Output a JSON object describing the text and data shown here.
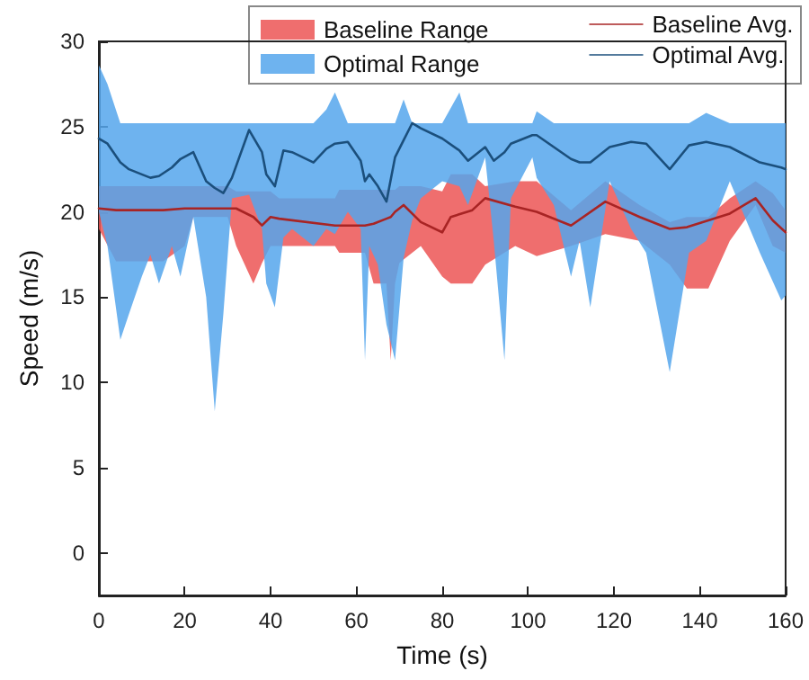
{
  "chart_data": {
    "type": "line",
    "xlabel": "Time (s)",
    "ylabel": "Speed (m/s)",
    "xlim": [
      0,
      160
    ],
    "xticks": [
      0,
      20,
      40,
      60,
      80,
      100,
      120,
      140,
      160
    ],
    "ylim": [
      -2.5,
      30
    ],
    "yticks": [
      0,
      5,
      10,
      15,
      20,
      25,
      30
    ],
    "grid": false,
    "legend": "top right",
    "marker": "none",
    "line_style": "solid",
    "annotations": [
      "Baseline Range",
      "Optimal Range"
    ],
    "series": [
      {
        "name": "Baseline Avg.",
        "color": "#a82424",
        "x": [
          0,
          4,
          15,
          20,
          22,
          30,
          32,
          36,
          38,
          40,
          42,
          55,
          56,
          62,
          64,
          67,
          68,
          69,
          70,
          71,
          75,
          80,
          82,
          87,
          90,
          97,
          102,
          110,
          118,
          126,
          133,
          137,
          142,
          147,
          153,
          157,
          160
        ],
        "values": [
          20.2,
          20.1,
          20.1,
          20.2,
          20.2,
          20.2,
          20.2,
          19.7,
          19.2,
          19.7,
          19.6,
          19.2,
          19.2,
          19.2,
          19.3,
          19.6,
          19.7,
          20,
          20.2,
          20.4,
          19.4,
          18.8,
          19.7,
          20.1,
          20.8,
          20.3,
          20,
          19.2,
          20.6,
          19.7,
          19,
          19.1,
          19.5,
          19.9,
          20.8,
          19.5,
          18.8
        ],
        "upper": [
          21.5,
          21.5,
          21.5,
          21.5,
          21.5,
          21.5,
          21.2,
          21.2,
          21.2,
          21.2,
          20.8,
          20.8,
          21.3,
          21.3,
          21.3,
          21.3,
          21.3,
          21.3,
          21.5,
          21.5,
          21.5,
          21.2,
          22.2,
          22.2,
          21.5,
          21.8,
          21.8,
          20.1,
          21.8,
          20.4,
          19.4,
          19.7,
          19.7,
          20.8,
          21.8,
          21.1,
          20.1
        ],
        "lower": [
          19,
          17.1,
          17.1,
          18,
          19.7,
          19.7,
          18,
          15.8,
          17,
          18,
          18,
          18,
          17.6,
          17.6,
          15.8,
          15.8,
          11.3,
          15.8,
          17,
          17.2,
          18,
          16.2,
          15.8,
          15.8,
          16.9,
          18,
          17.4,
          18,
          18.7,
          18.3,
          16.9,
          15.5,
          15.5,
          18.3,
          20.4,
          18,
          17.6
        ]
      },
      {
        "name": "Optimal Avg.",
        "color": "#1b4f7c",
        "x": [
          0,
          2,
          5,
          7,
          10,
          12,
          14,
          17,
          19,
          22,
          25,
          27,
          29,
          31,
          35,
          38,
          39,
          41,
          43,
          45,
          50,
          53,
          55,
          58,
          61,
          62,
          63,
          65,
          67,
          69,
          71,
          73,
          75,
          80,
          84,
          86,
          90,
          92,
          94.5,
          96,
          101,
          102,
          106,
          110,
          112,
          114.5,
          119,
          124,
          127.5,
          133,
          137.5,
          141.5,
          147,
          154,
          159,
          160
        ],
        "values": [
          24.3,
          24,
          22.9,
          22.5,
          22.2,
          22,
          22.1,
          22.6,
          23.1,
          23.5,
          21.8,
          21.4,
          21.1,
          22,
          24.8,
          23.5,
          22.2,
          21.5,
          23.6,
          23.5,
          22.9,
          23.7,
          24,
          24.1,
          23,
          21.8,
          22.2,
          21.5,
          20.6,
          23.2,
          24.2,
          25.2,
          24.9,
          24.3,
          23.6,
          23,
          23.8,
          23,
          23.5,
          24,
          24.5,
          24.5,
          23.8,
          23.1,
          22.9,
          22.9,
          23.8,
          24.1,
          24,
          22.5,
          23.9,
          24.1,
          23.8,
          22.9,
          22.6,
          22.5
        ],
        "upper": [
          28.6,
          27.5,
          25.2,
          25.2,
          25.2,
          25.2,
          25.2,
          25.2,
          25.2,
          25.2,
          25.2,
          25.2,
          25.2,
          25.2,
          25.2,
          25.2,
          25.2,
          25.2,
          25.2,
          25.2,
          25.2,
          26,
          27,
          25.2,
          25.2,
          25.2,
          25.2,
          25.2,
          25.2,
          25.2,
          26.6,
          25.2,
          25.2,
          25.2,
          27,
          25.2,
          25.2,
          25.2,
          25.2,
          25.2,
          25.2,
          25.9,
          25.2,
          25.2,
          25.2,
          25.2,
          25.2,
          25.2,
          25.2,
          25.2,
          25.2,
          25.8,
          25.2,
          25.2,
          25.2,
          25.2
        ],
        "lower": [
          20,
          18,
          12.5,
          14,
          16.2,
          17.5,
          15.8,
          18,
          16.2,
          19.7,
          15,
          8.3,
          14,
          20.8,
          21,
          19,
          15.8,
          14.4,
          18.5,
          19,
          18,
          19,
          18.7,
          20,
          19,
          11.3,
          18,
          16.9,
          13.4,
          11.3,
          17.3,
          19.5,
          20.8,
          21.8,
          21.5,
          20.4,
          23.2,
          18.3,
          11.3,
          20.8,
          23.2,
          22,
          20.4,
          16.2,
          18.3,
          14.4,
          21.8,
          19,
          17.6,
          10.6,
          17.6,
          18.3,
          21.8,
          17.6,
          14.8,
          15.1
        ]
      }
    ]
  }
}
